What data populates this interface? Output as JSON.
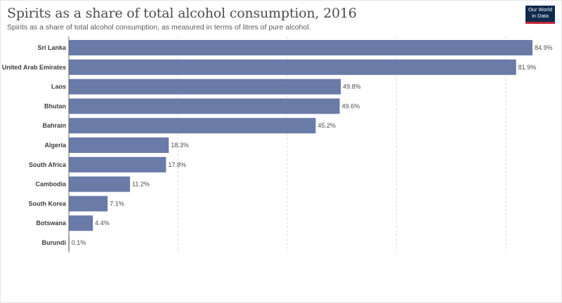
{
  "header": {
    "title": "Spirits as a share of total alcohol consumption, 2016",
    "subtitle": "Spirits as a share of total alcohol consumption, as measured in terms of litres of pure alcohol."
  },
  "logo": {
    "line1": "Our World",
    "line2": "in Data"
  },
  "colors": {
    "bar": "#6a7ba8",
    "grid": "#dcdcdc",
    "axis": "#666666"
  },
  "chart_data": {
    "type": "bar",
    "orientation": "horizontal",
    "categories": [
      "Sri Lanka",
      "United Arab Emirates",
      "Laos",
      "Bhutan",
      "Bahrain",
      "Algeria",
      "South Africa",
      "Cambodia",
      "South Korea",
      "Botswana",
      "Burundi"
    ],
    "values": [
      84.9,
      81.9,
      49.8,
      49.6,
      45.2,
      18.3,
      17.8,
      11.2,
      7.1,
      4.4,
      0.1
    ],
    "value_labels": [
      "84.9%",
      "81.9%",
      "49.8%",
      "49.6%",
      "45.2%",
      "18.3%",
      "17.8%",
      "11.2%",
      "7.1%",
      "4.4%",
      "0.1%"
    ],
    "xlim": [
      0,
      84.9
    ],
    "gridlines": [
      20,
      40,
      60,
      80
    ],
    "grid": true
  }
}
